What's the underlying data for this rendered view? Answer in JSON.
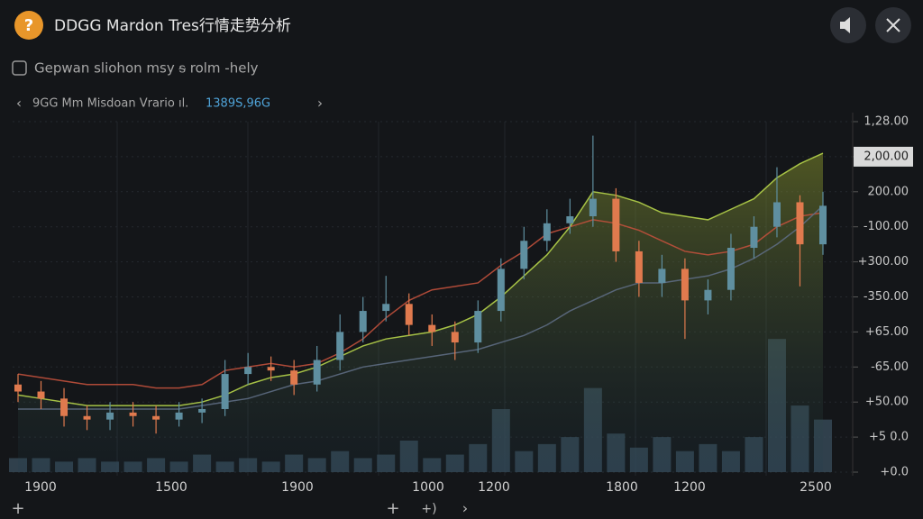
{
  "header": {
    "title": "DDGG Mardon Tres行情走势分析",
    "subtitle": "Gepwan sliohon msy ᵴ rolm -hely"
  },
  "ticker": {
    "name": "9GG Mm Misdoan Vrario ıl.",
    "price": "1389S,96G"
  },
  "chart_data": {
    "type": "candlestick",
    "open": [
      2.5,
      2.3,
      2.1,
      1.6,
      1.5,
      1.7,
      1.6,
      1.5,
      1.7,
      1.8,
      2.8,
      3.0,
      2.9,
      2.5,
      3.2,
      4.0,
      4.6,
      4.8,
      4.2,
      4.0,
      3.7,
      4.6,
      5.8,
      6.6,
      7.1,
      7.3,
      7.8,
      6.3,
      5.4,
      5.8,
      4.9,
      5.2,
      6.4,
      7.0,
      7.7,
      6.5
    ],
    "close": [
      2.3,
      2.1,
      1.6,
      1.5,
      1.7,
      1.6,
      1.5,
      1.7,
      1.8,
      2.8,
      3.0,
      2.9,
      2.5,
      3.2,
      4.0,
      4.6,
      4.8,
      4.2,
      4.0,
      3.7,
      4.6,
      5.8,
      6.6,
      7.1,
      7.3,
      7.8,
      6.3,
      5.4,
      5.8,
      4.9,
      5.2,
      6.4,
      7.0,
      7.7,
      6.5,
      7.6
    ],
    "high": [
      2.8,
      2.6,
      2.4,
      1.9,
      2.0,
      2.0,
      1.9,
      2.0,
      2.1,
      3.2,
      3.4,
      3.3,
      3.2,
      3.6,
      4.5,
      5.0,
      5.6,
      5.1,
      4.5,
      4.3,
      4.9,
      6.1,
      7.0,
      7.5,
      7.8,
      9.6,
      8.1,
      6.6,
      6.2,
      6.1,
      5.5,
      6.8,
      7.3,
      8.7,
      7.9,
      8.0
    ],
    "low": [
      2.0,
      1.8,
      1.3,
      1.2,
      1.2,
      1.3,
      1.1,
      1.3,
      1.4,
      1.6,
      2.5,
      2.6,
      2.2,
      2.3,
      2.9,
      3.7,
      4.3,
      3.9,
      3.6,
      3.2,
      3.4,
      4.3,
      5.5,
      6.3,
      6.8,
      7.0,
      6.0,
      5.0,
      5.0,
      3.8,
      4.5,
      4.9,
      6.1,
      6.7,
      5.3,
      6.2
    ],
    "volume": [
      0.4,
      0.4,
      0.3,
      0.4,
      0.3,
      0.3,
      0.4,
      0.3,
      0.5,
      0.3,
      0.4,
      0.3,
      0.5,
      0.4,
      0.6,
      0.4,
      0.5,
      0.9,
      0.4,
      0.5,
      0.8,
      1.8,
      0.6,
      0.8,
      1.0,
      2.4,
      1.1,
      0.7,
      1.0,
      0.6,
      0.8,
      0.6,
      1.0,
      3.8,
      1.9,
      1.5
    ],
    "up_color": "#5f8fa0",
    "down_color": "#e07a4e",
    "volume_color": "#3a4f5e",
    "series": [
      {
        "color": "#c0503c",
        "values": [
          2.8,
          2.7,
          2.6,
          2.5,
          2.5,
          2.5,
          2.4,
          2.4,
          2.5,
          2.9,
          3.0,
          3.1,
          3.0,
          3.1,
          3.4,
          3.8,
          4.4,
          4.9,
          5.2,
          5.3,
          5.4,
          5.9,
          6.3,
          6.8,
          7.0,
          7.2,
          7.1,
          6.9,
          6.6,
          6.3,
          6.2,
          6.3,
          6.5,
          7.0,
          7.3,
          7.4
        ]
      },
      {
        "color": "#b5d34a",
        "values": [
          2.2,
          2.1,
          2.0,
          1.9,
          1.9,
          1.9,
          1.9,
          1.9,
          2.0,
          2.2,
          2.5,
          2.7,
          2.8,
          3.0,
          3.3,
          3.6,
          3.8,
          3.9,
          4.0,
          4.2,
          4.5,
          5.0,
          5.6,
          6.2,
          7.0,
          8.0,
          7.9,
          7.7,
          7.4,
          7.3,
          7.2,
          7.5,
          7.8,
          8.4,
          8.8,
          9.1
        ]
      },
      {
        "color": "#5d6b82",
        "values": [
          1.8,
          1.8,
          1.8,
          1.8,
          1.8,
          1.8,
          1.8,
          1.8,
          1.9,
          2.0,
          2.1,
          2.3,
          2.5,
          2.6,
          2.8,
          3.0,
          3.1,
          3.2,
          3.3,
          3.4,
          3.5,
          3.7,
          3.9,
          4.2,
          4.6,
          4.9,
          5.2,
          5.4,
          5.4,
          5.5,
          5.6,
          5.8,
          6.1,
          6.5,
          7.0,
          7.6
        ]
      }
    ],
    "ylim": [
      0,
      10
    ],
    "yticks": [
      {
        "value": 10,
        "label": "1,28.00"
      },
      {
        "value": 9,
        "label": "2,00.00"
      },
      {
        "value": 8,
        "label": "200.00"
      },
      {
        "value": 7,
        "label": "-100.00"
      },
      {
        "value": 6,
        "label": "+300.00"
      },
      {
        "value": 5,
        "label": "-350.00"
      },
      {
        "value": 4,
        "label": "+65.00"
      },
      {
        "value": 3,
        "label": "-65.00"
      },
      {
        "value": 2,
        "label": "+50.00"
      },
      {
        "value": 1,
        "label": "+5 0.0"
      },
      {
        "value": 0,
        "label": "+0.0"
      }
    ],
    "highlighted_ytick": 1,
    "x_labels": [
      "1900",
      "1500",
      "1900",
      "1000",
      "1200",
      "1800",
      "1200",
      "2500"
    ]
  }
}
